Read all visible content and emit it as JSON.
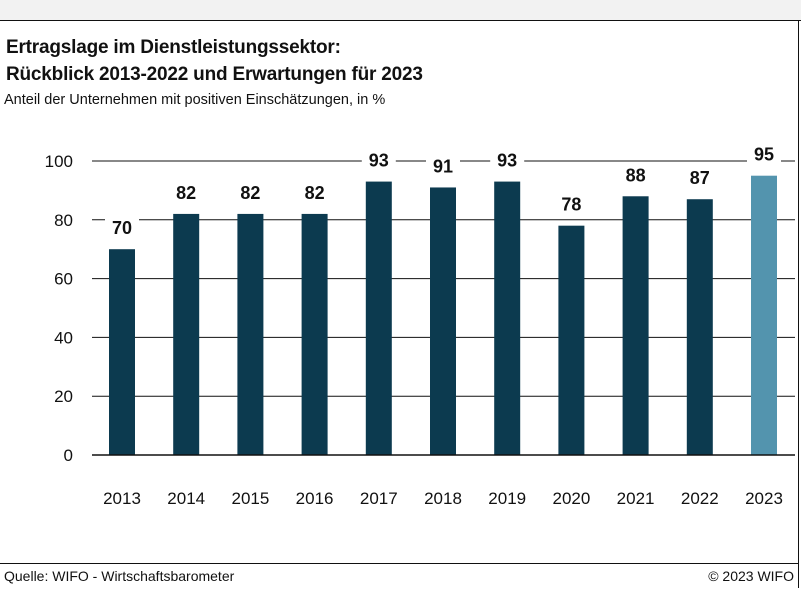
{
  "header": {
    "title_line1": "Ertragslage im Dienstleistungssektor:",
    "title_line2": "Rückblick 2013-2022 und Erwartungen für 2023",
    "subtitle": "Anteil der Unternehmen mit positiven Einschätzungen, in %"
  },
  "footer": {
    "source": "Quelle: WIFO - Wirtschaftsbarometer",
    "copyright": "© 2023 WIFO"
  },
  "colors": {
    "historic_bar": "#0c3a4f",
    "forecast_bar": "#5394ae",
    "gridline": "#111111"
  },
  "chart_data": {
    "type": "bar",
    "categories": [
      "2013",
      "2014",
      "2015",
      "2016",
      "2017",
      "2018",
      "2019",
      "2020",
      "2021",
      "2022",
      "2023"
    ],
    "values": [
      70,
      82,
      82,
      82,
      93,
      91,
      93,
      78,
      88,
      87,
      95
    ],
    "data_labels": [
      "70",
      "82",
      "82",
      "82",
      "93",
      "91",
      "93",
      "78",
      "88",
      "87",
      "95"
    ],
    "highlight_category": "2023",
    "ylim": [
      0,
      100
    ],
    "yticks": [
      0,
      20,
      40,
      60,
      80,
      100
    ],
    "ytick_labels": [
      "0",
      "20",
      "40",
      "60",
      "80",
      "100"
    ],
    "grid": true,
    "xlabel": "",
    "ylabel": ""
  }
}
